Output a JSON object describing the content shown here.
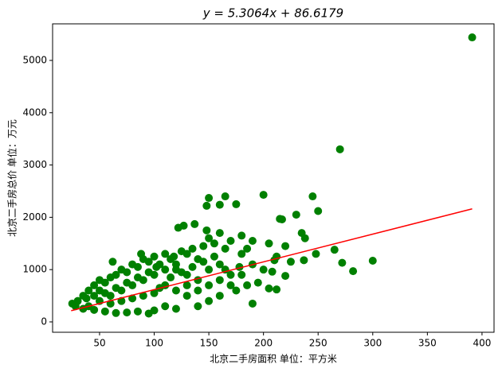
{
  "chart_data": {
    "type": "scatter",
    "title": "y = 5.3064x + 86.6179",
    "x_label": "北京二手房面积 单位：平方米",
    "y_label": "北京二手房总价 单位：万元",
    "xlim": [
      7,
      411
    ],
    "ylim": [
      -198,
      5699
    ],
    "xticks": [
      50,
      100,
      150,
      200,
      250,
      300,
      350,
      400
    ],
    "yticks": [
      0,
      1000,
      2000,
      3000,
      4000,
      5000
    ],
    "points": {
      "color": "#008000",
      "x": [
        391,
        270,
        200,
        165,
        150,
        245,
        250,
        148,
        160,
        175,
        215,
        217,
        137,
        230,
        122,
        127,
        148,
        160,
        180,
        190,
        205,
        220,
        235,
        238,
        248,
        265,
        272,
        282,
        300,
        237,
        225,
        212,
        210,
        220,
        208,
        205,
        212,
        190,
        185,
        200,
        178,
        170,
        160,
        150,
        140,
        130,
        120,
        110,
        100,
        95,
        85,
        75,
        65,
        55,
        45,
        35,
        28,
        25,
        30,
        35,
        40,
        45,
        50,
        55,
        60,
        65,
        70,
        75,
        80,
        85,
        90,
        95,
        100,
        105,
        110,
        115,
        120,
        125,
        130,
        135,
        140,
        145,
        150,
        155,
        165,
        170,
        40,
        50,
        60,
        70,
        80,
        90,
        100,
        110,
        120,
        130,
        140,
        150,
        160,
        170,
        180,
        190,
        50,
        60,
        70,
        80,
        90,
        100,
        110,
        120,
        130,
        140,
        150,
        160,
        175,
        185,
        195,
        45,
        55,
        65,
        75,
        85,
        95,
        105,
        115,
        125,
        135,
        145,
        155,
        165,
        180,
        38,
        62,
        88,
        102,
        118
      ],
      "values": [
        5440,
        3300,
        2430,
        2400,
        2370,
        2400,
        2120,
        2220,
        2240,
        2250,
        1970,
        1960,
        1870,
        2050,
        1800,
        1840,
        1750,
        1700,
        1650,
        1550,
        1500,
        1450,
        1700,
        1600,
        1300,
        1380,
        1130,
        970,
        1170,
        1180,
        1150,
        1250,
        1180,
        880,
        960,
        640,
        620,
        350,
        700,
        1000,
        1050,
        900,
        500,
        400,
        300,
        700,
        250,
        300,
        220,
        160,
        200,
        180,
        170,
        200,
        230,
        250,
        300,
        350,
        400,
        500,
        600,
        700,
        800,
        750,
        850,
        900,
        1000,
        950,
        1100,
        1050,
        1200,
        1150,
        1250,
        1100,
        1300,
        1200,
        1000,
        1350,
        1300,
        1400,
        1200,
        1450,
        1600,
        1500,
        1400,
        1550,
        300,
        400,
        500,
        600,
        700,
        800,
        900,
        700,
        600,
        900,
        800,
        1000,
        1100,
        700,
        900,
        1100,
        600,
        350,
        400,
        450,
        500,
        550,
        1000,
        1100,
        500,
        600,
        700,
        800,
        600,
        1400,
        750,
        500,
        550,
        650,
        750,
        850,
        950,
        650,
        850,
        950,
        1050,
        1150,
        1250,
        1000,
        1300,
        450,
        1150,
        1300,
        1050,
        1250
      ]
    },
    "fit_line": {
      "color": "#ff0000",
      "x": [
        24,
        391
      ],
      "values": [
        214,
        2161
      ]
    }
  }
}
